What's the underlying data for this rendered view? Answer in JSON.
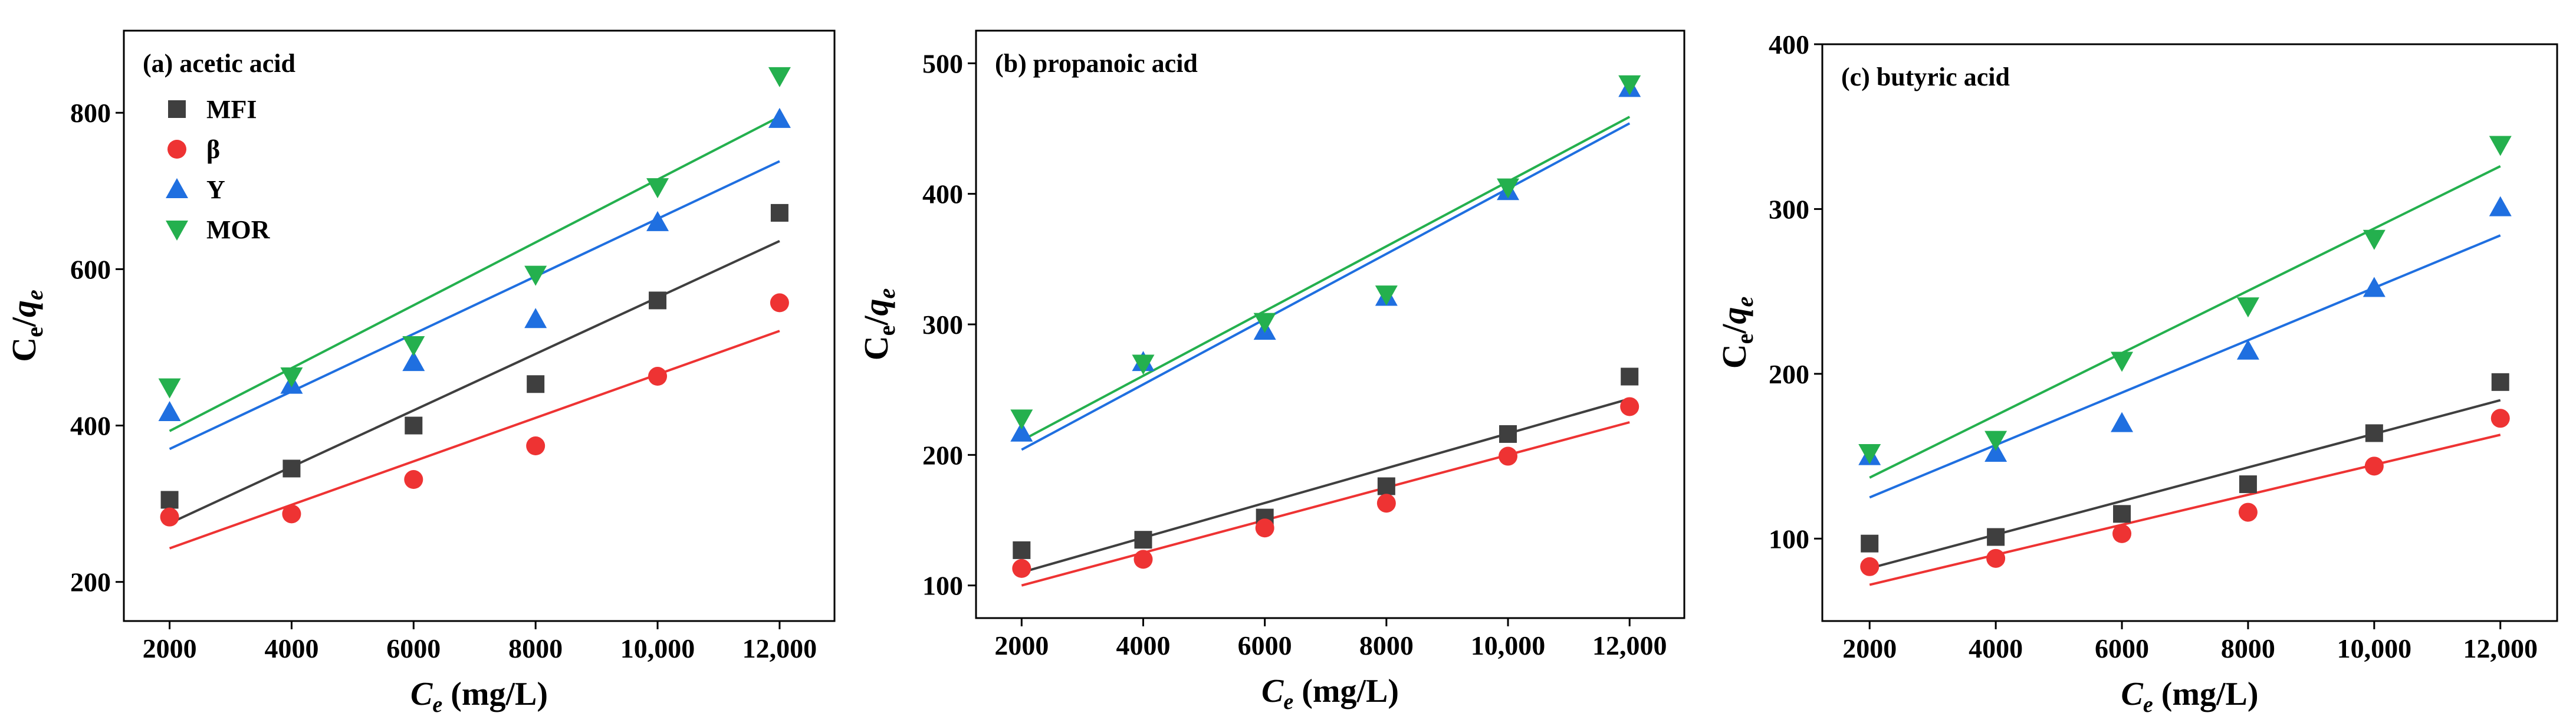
{
  "colors": {
    "MFI": "#3f3f3f",
    "β": "#ee3333",
    "Y": "#1f6fe0",
    "MOR": "#24b04e"
  },
  "chart_data": [
    {
      "type": "scatter",
      "title": "(a) acetic acid",
      "xlabel_main": "C",
      "xlabel_sub": "e",
      "xlabel_unit": " (mg/L)",
      "ylabel": "Ce/qe",
      "xlim": [
        1250,
        12900
      ],
      "ylim": [
        150,
        905
      ],
      "xticks": [
        2000,
        4000,
        6000,
        8000,
        10000,
        12000
      ],
      "xtick_labels": [
        "2000",
        "4000",
        "6000",
        "8000",
        "10,000",
        "12,000"
      ],
      "yticks": [
        200,
        400,
        600,
        800
      ],
      "ytick_labels": [
        "200",
        "400",
        "600",
        "800"
      ],
      "legend_position": "top-left",
      "series": [
        {
          "name": "MFI",
          "marker": "square",
          "x": [
            2000,
            4000,
            6000,
            8000,
            10000,
            12000
          ],
          "y": [
            305,
            345,
            400,
            453,
            560,
            672
          ],
          "fit": [
            275,
            636
          ]
        },
        {
          "name": "β",
          "marker": "circle",
          "x": [
            2000,
            4000,
            6000,
            8000,
            10000,
            12000
          ],
          "y": [
            283,
            287,
            331,
            374,
            463,
            557
          ],
          "fit": [
            243,
            521
          ]
        },
        {
          "name": "Y",
          "marker": "triangle-up",
          "x": [
            2000,
            4000,
            6000,
            8000,
            10000,
            12000
          ],
          "y": [
            417,
            452,
            481,
            536,
            660,
            792
          ],
          "fit": [
            370,
            738
          ]
        },
        {
          "name": "MOR",
          "marker": "triangle-down",
          "x": [
            2000,
            4000,
            6000,
            8000,
            10000,
            12000
          ],
          "y": [
            449,
            463,
            503,
            593,
            705,
            847
          ],
          "fit": [
            393,
            795
          ]
        }
      ]
    },
    {
      "type": "scatter",
      "title": "(b) propanoic acid",
      "xlabel_main": "C",
      "xlabel_sub": "e",
      "xlabel_unit": " (mg/L)",
      "ylabel": "Ce/qe",
      "xlim": [
        1250,
        12900
      ],
      "ylim": [
        75,
        525
      ],
      "xticks": [
        2000,
        4000,
        6000,
        8000,
        10000,
        12000
      ],
      "xtick_labels": [
        "2000",
        "4000",
        "6000",
        "8000",
        "10,000",
        "12,000"
      ],
      "yticks": [
        100,
        200,
        300,
        400,
        500
      ],
      "ytick_labels": [
        "100",
        "200",
        "300",
        "400",
        "500"
      ],
      "series": [
        {
          "name": "MFI",
          "marker": "square",
          "x": [
            2000,
            4000,
            6000,
            8000,
            10000,
            12000
          ],
          "y": [
            127,
            135,
            152,
            176,
            216,
            260
          ],
          "fit": [
            110,
            243
          ]
        },
        {
          "name": "β",
          "marker": "circle",
          "x": [
            2000,
            4000,
            6000,
            8000,
            10000,
            12000
          ],
          "y": [
            113,
            120,
            144,
            163,
            199,
            237
          ],
          "fit": [
            100,
            225
          ]
        },
        {
          "name": "Y",
          "marker": "triangle-up",
          "x": [
            2000,
            4000,
            6000,
            8000,
            10000,
            12000
          ],
          "y": [
            217,
            271,
            295,
            321,
            402,
            481
          ],
          "fit": [
            204,
            454
          ]
        },
        {
          "name": "MOR",
          "marker": "triangle-down",
          "x": [
            2000,
            4000,
            6000,
            8000,
            10000,
            12000
          ],
          "y": [
            228,
            270,
            302,
            323,
            405,
            484
          ],
          "fit": [
            211,
            459
          ]
        }
      ]
    },
    {
      "type": "scatter",
      "title": "(c) butyric acid",
      "xlabel_main": "C",
      "xlabel_sub": "e",
      "xlabel_unit": " (mg/L)",
      "ylabel": "Ce/qe",
      "xlim": [
        1250,
        12900
      ],
      "ylim": [
        50,
        400
      ],
      "xticks": [
        2000,
        4000,
        6000,
        8000,
        10000,
        12000
      ],
      "xtick_labels": [
        "2000",
        "4000",
        "6000",
        "8000",
        "10,000",
        "12,000"
      ],
      "yticks": [
        100,
        200,
        300,
        400
      ],
      "ytick_labels": [
        "100",
        "200",
        "300",
        "400"
      ],
      "series": [
        {
          "name": "MFI",
          "marker": "square",
          "x": [
            2000,
            4000,
            6000,
            8000,
            10000,
            12000
          ],
          "y": [
            97,
            101,
            115,
            133,
            164,
            195
          ],
          "fit": [
            82,
            184
          ]
        },
        {
          "name": "β",
          "marker": "circle",
          "x": [
            2000,
            4000,
            6000,
            8000,
            10000,
            12000
          ],
          "y": [
            83,
            88,
            103,
            116,
            144,
            173
          ],
          "fit": [
            72,
            163
          ]
        },
        {
          "name": "Y",
          "marker": "triangle-up",
          "x": [
            2000,
            4000,
            6000,
            8000,
            10000,
            12000
          ],
          "y": [
            150,
            152,
            170,
            214,
            252,
            301
          ],
          "fit": [
            125,
            284
          ]
        },
        {
          "name": "MOR",
          "marker": "triangle-down",
          "x": [
            2000,
            4000,
            6000,
            8000,
            10000,
            12000
          ],
          "y": [
            152,
            160,
            208,
            241,
            282,
            339
          ],
          "fit": [
            137,
            326
          ]
        }
      ]
    }
  ]
}
